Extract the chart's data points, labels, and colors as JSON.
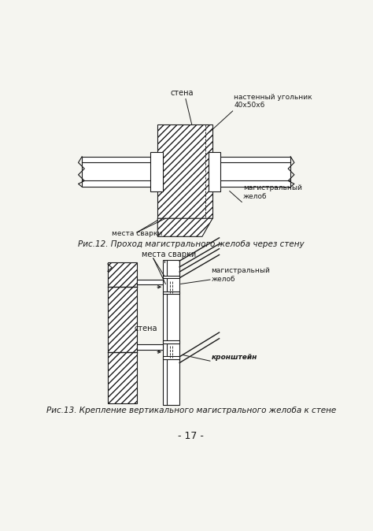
{
  "bg_color": "#f5f5f0",
  "line_color": "#1a1a1a",
  "fig1_caption": "Рис.12. Проход магистрального желоба через стену",
  "fig2_caption": "Рис.13. Крепление вертикального магистрального желоба к стене",
  "page_num": "- 17 -",
  "label_stena1": "стена",
  "label_ugolnik": "настенный угольник\n40х50х6",
  "label_magistral1": "магистральный\nжелоб",
  "label_mesta_svarki1": "места сварки",
  "label_mesta_svarki2": "места сварки",
  "label_stena2": "стена",
  "label_magistral2": "магистральный\nжелоб",
  "label_kronshtein": "кронштейн"
}
